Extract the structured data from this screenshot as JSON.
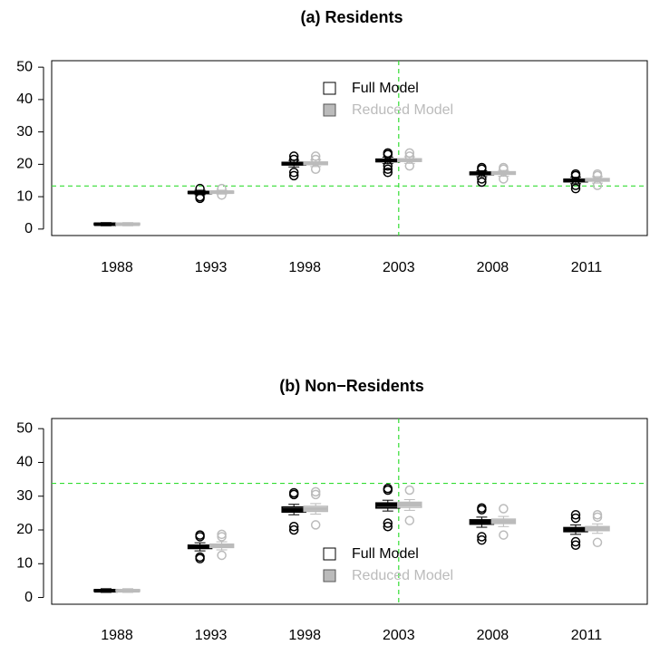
{
  "chart_data": [
    {
      "type": "box",
      "title": "(a) Residents",
      "categories": [
        "1988",
        "1993",
        "1998",
        "2003",
        "2008",
        "2011"
      ],
      "ylim": [
        -2,
        52
      ],
      "yticks": [
        0,
        10,
        20,
        30,
        40,
        50
      ],
      "hline": 13.3,
      "vline_category": 3,
      "reference_color": "#33dd33",
      "legend": "top",
      "series": [
        {
          "name": "Full Model",
          "color": "#000000",
          "boxes": [
            {
              "low": 1.0,
              "q1": 1.3,
              "median": 1.5,
              "q3": 1.8,
              "high": 2.0,
              "outliers": []
            },
            {
              "low": 10.6,
              "q1": 11.0,
              "median": 11.3,
              "q3": 11.6,
              "high": 12.0,
              "outliers": [
                9.5,
                10.0,
                12.5
              ]
            },
            {
              "low": 19.2,
              "q1": 19.8,
              "median": 20.2,
              "q3": 20.6,
              "high": 21.2,
              "outliers": [
                16.5,
                17.5,
                21.5,
                22.5
              ]
            },
            {
              "low": 20.2,
              "q1": 20.8,
              "median": 21.2,
              "q3": 21.6,
              "high": 22.2,
              "outliers": [
                17.5,
                18.5,
                19.5,
                23.0,
                23.5
              ]
            },
            {
              "low": 16.2,
              "q1": 16.8,
              "median": 17.2,
              "q3": 17.6,
              "high": 18.0,
              "outliers": [
                14.5,
                15.5,
                18.5,
                19.0
              ]
            },
            {
              "low": 14.0,
              "q1": 14.6,
              "median": 15.0,
              "q3": 15.4,
              "high": 16.0,
              "outliers": [
                12.5,
                13.5,
                16.5,
                17.0
              ]
            }
          ]
        },
        {
          "name": "Reduced Model",
          "color": "#bbbbbb",
          "boxes": [
            {
              "low": 1.0,
              "q1": 1.3,
              "median": 1.5,
              "q3": 1.8,
              "high": 2.0,
              "outliers": []
            },
            {
              "low": 10.8,
              "q1": 11.1,
              "median": 11.4,
              "q3": 11.7,
              "high": 12.0,
              "outliers": [
                10.5,
                12.5
              ]
            },
            {
              "low": 19.3,
              "q1": 19.9,
              "median": 20.3,
              "q3": 20.7,
              "high": 21.3,
              "outliers": [
                18.5,
                21.5,
                22.5
              ]
            },
            {
              "low": 20.3,
              "q1": 20.9,
              "median": 21.3,
              "q3": 21.7,
              "high": 22.3,
              "outliers": [
                19.5,
                22.5,
                23.5
              ]
            },
            {
              "low": 16.3,
              "q1": 16.9,
              "median": 17.3,
              "q3": 17.7,
              "high": 18.1,
              "outliers": [
                15.5,
                18.5,
                19.0
              ]
            },
            {
              "low": 14.2,
              "q1": 14.8,
              "median": 15.2,
              "q3": 15.6,
              "high": 16.2,
              "outliers": [
                13.5,
                16.5,
                17.0
              ]
            }
          ]
        }
      ]
    },
    {
      "type": "box",
      "title": "(b) Non−Residents",
      "categories": [
        "1988",
        "1993",
        "1998",
        "2003",
        "2008",
        "2011"
      ],
      "ylim": [
        -2,
        53
      ],
      "yticks": [
        0,
        10,
        20,
        30,
        40,
        50
      ],
      "hline": 33.8,
      "vline_category": 3,
      "reference_color": "#33dd33",
      "legend": "bottom",
      "series": [
        {
          "name": "Full Model",
          "color": "#000000",
          "boxes": [
            {
              "low": 1.5,
              "q1": 1.8,
              "median": 2.0,
              "q3": 2.3,
              "high": 2.6,
              "outliers": []
            },
            {
              "low": 13.8,
              "q1": 14.5,
              "median": 15.0,
              "q3": 15.5,
              "high": 16.2,
              "outliers": [
                11.5,
                12.0,
                18.0,
                18.5
              ]
            },
            {
              "low": 24.5,
              "q1": 25.3,
              "median": 26.0,
              "q3": 26.8,
              "high": 27.6,
              "outliers": [
                20.0,
                21.0,
                30.5,
                31.0
              ]
            },
            {
              "low": 25.6,
              "q1": 26.5,
              "median": 27.3,
              "q3": 28.0,
              "high": 28.8,
              "outliers": [
                21.0,
                22.0,
                31.8,
                32.3
              ]
            },
            {
              "low": 20.8,
              "q1": 21.7,
              "median": 22.3,
              "q3": 23.0,
              "high": 23.8,
              "outliers": [
                17.0,
                18.0,
                26.0,
                26.5
              ]
            },
            {
              "low": 18.7,
              "q1": 19.5,
              "median": 20.0,
              "q3": 20.7,
              "high": 21.5,
              "outliers": [
                15.5,
                16.5,
                23.5,
                24.5
              ]
            }
          ]
        },
        {
          "name": "Reduced Model",
          "color": "#bbbbbb",
          "boxes": [
            {
              "low": 1.5,
              "q1": 1.8,
              "median": 2.0,
              "q3": 2.3,
              "high": 2.6,
              "outliers": []
            },
            {
              "low": 14.1,
              "q1": 14.8,
              "median": 15.3,
              "q3": 15.8,
              "high": 16.5,
              "outliers": [
                12.5,
                18.0,
                18.7
              ]
            },
            {
              "low": 24.7,
              "q1": 25.5,
              "median": 26.2,
              "q3": 27.0,
              "high": 27.8,
              "outliers": [
                21.5,
                30.5,
                31.3
              ]
            },
            {
              "low": 25.8,
              "q1": 26.7,
              "median": 27.5,
              "q3": 28.2,
              "high": 29.0,
              "outliers": [
                22.8,
                31.8
              ]
            },
            {
              "low": 21.0,
              "q1": 21.9,
              "median": 22.5,
              "q3": 23.2,
              "high": 24.0,
              "outliers": [
                18.5,
                26.3
              ]
            },
            {
              "low": 19.0,
              "q1": 19.8,
              "median": 20.3,
              "q3": 21.0,
              "high": 21.8,
              "outliers": [
                16.3,
                23.8,
                24.5
              ]
            }
          ]
        }
      ]
    }
  ]
}
